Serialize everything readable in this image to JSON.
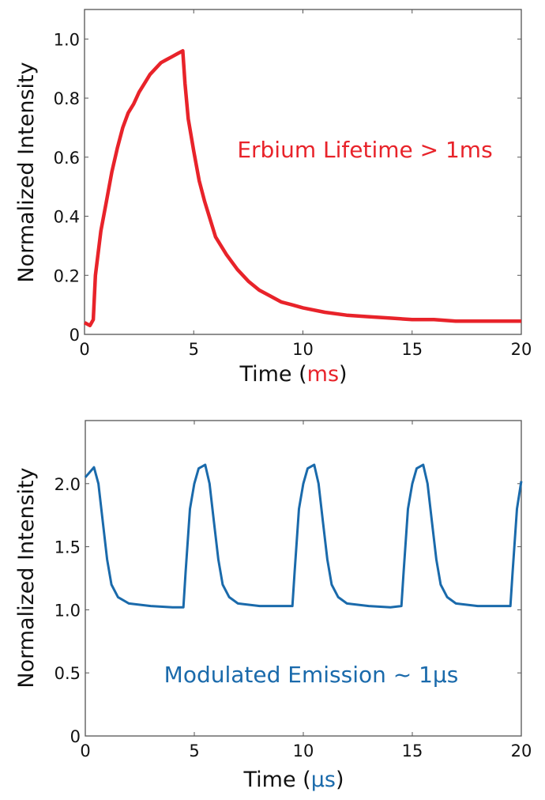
{
  "chart_data": [
    {
      "type": "line",
      "ylabel": "Normalized Intensity",
      "xlabel_prefix": "Time (",
      "xlabel_unit": "ms",
      "xlabel_suffix": ")",
      "annotation": "Erbium Lifetime > 1ms",
      "color": "#e8232a",
      "xlim": [
        0,
        20
      ],
      "ylim": [
        0,
        1.1
      ],
      "xticks": [
        0,
        5,
        10,
        15,
        20
      ],
      "xtick_labels": [
        "0",
        "5",
        "10",
        "15",
        "20"
      ],
      "yticks": [
        0,
        0.2,
        0.4,
        0.6,
        0.8,
        1.0
      ],
      "ytick_labels": [
        "0",
        "0.2",
        "0.4",
        "0.6",
        "0.8",
        "1.0"
      ],
      "grid": false,
      "x": [
        0,
        0.25,
        0.4,
        0.5,
        0.75,
        1,
        1.25,
        1.5,
        1.75,
        2,
        2.25,
        2.5,
        2.75,
        3,
        3.25,
        3.5,
        3.75,
        4,
        4.25,
        4.5,
        4.6,
        4.75,
        5,
        5.25,
        5.5,
        5.75,
        6,
        6.5,
        7,
        7.5,
        8,
        8.5,
        9,
        9.5,
        10,
        11,
        12,
        13,
        14,
        15,
        16,
        17,
        18,
        19,
        20
      ],
      "y": [
        0.04,
        0.03,
        0.05,
        0.2,
        0.35,
        0.45,
        0.55,
        0.63,
        0.7,
        0.75,
        0.78,
        0.82,
        0.85,
        0.88,
        0.9,
        0.92,
        0.93,
        0.94,
        0.95,
        0.96,
        0.85,
        0.73,
        0.62,
        0.52,
        0.45,
        0.39,
        0.33,
        0.27,
        0.22,
        0.18,
        0.15,
        0.13,
        0.11,
        0.1,
        0.09,
        0.075,
        0.065,
        0.06,
        0.055,
        0.05,
        0.05,
        0.045,
        0.045,
        0.045,
        0.045
      ]
    },
    {
      "type": "line",
      "ylabel": "Normalized Intensity",
      "xlabel_prefix": "Time (",
      "xlabel_unit": "µs",
      "xlabel_suffix": ")",
      "annotation": "Modulated Emission ~ 1µs",
      "color": "#1a6aab",
      "xlim": [
        0,
        20
      ],
      "ylim": [
        0,
        2.5
      ],
      "xticks": [
        0,
        5,
        10,
        15,
        20
      ],
      "xtick_labels": [
        "0",
        "5",
        "10",
        "15",
        "20"
      ],
      "yticks": [
        0,
        0.5,
        1.0,
        1.5,
        2.0
      ],
      "ytick_labels": [
        "0",
        "0.5",
        "1.0",
        "1.5",
        "2.0"
      ],
      "grid": false,
      "x": [
        0,
        0.4,
        0.6,
        0.8,
        1,
        1.2,
        1.5,
        2,
        3,
        4,
        4.5,
        4.6,
        4.8,
        5,
        5.2,
        5.5,
        5.7,
        5.9,
        6.1,
        6.3,
        6.6,
        7,
        8,
        9,
        9.5,
        9.6,
        9.8,
        10,
        10.2,
        10.5,
        10.7,
        10.9,
        11.1,
        11.3,
        11.6,
        12,
        13,
        14,
        14.5,
        14.6,
        14.8,
        15,
        15.2,
        15.5,
        15.7,
        15.9,
        16.1,
        16.3,
        16.6,
        17,
        18,
        19,
        19.5,
        19.6,
        19.8,
        20
      ],
      "y": [
        2.05,
        2.13,
        2.0,
        1.7,
        1.4,
        1.2,
        1.1,
        1.05,
        1.03,
        1.02,
        1.02,
        1.3,
        1.8,
        2.0,
        2.12,
        2.15,
        2.0,
        1.7,
        1.4,
        1.2,
        1.1,
        1.05,
        1.03,
        1.03,
        1.03,
        1.3,
        1.8,
        2.0,
        2.12,
        2.15,
        2.0,
        1.7,
        1.4,
        1.2,
        1.1,
        1.05,
        1.03,
        1.02,
        1.03,
        1.3,
        1.8,
        2.0,
        2.12,
        2.15,
        2.0,
        1.7,
        1.4,
        1.2,
        1.1,
        1.05,
        1.03,
        1.03,
        1.03,
        1.3,
        1.8,
        2.02
      ]
    }
  ]
}
